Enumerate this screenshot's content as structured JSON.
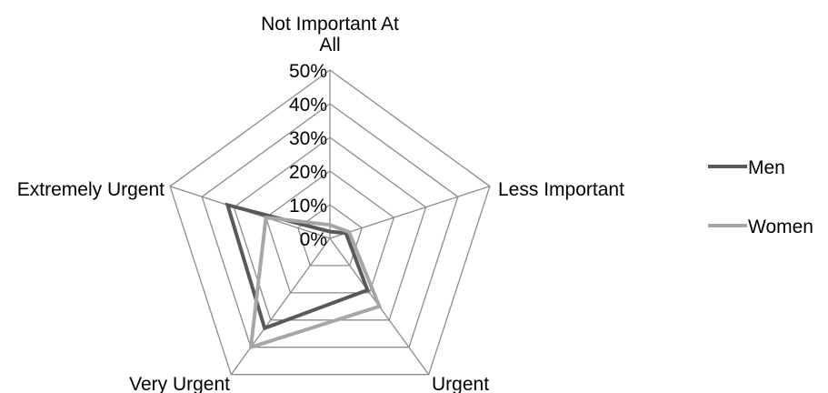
{
  "chart_data": {
    "type": "radar",
    "categories": [
      "Not Important At All",
      "Less Important",
      "Urgent",
      "Very Urgent",
      "Extremely Urgent"
    ],
    "category_label_lines": [
      [
        "Not Important At",
        "All"
      ],
      [
        "Less Important"
      ],
      [
        "Urgent"
      ],
      [
        "Very Urgent"
      ],
      [
        "Extremely Urgent"
      ]
    ],
    "ylim": [
      0,
      0.5
    ],
    "ticks": [
      0,
      0.1,
      0.2,
      0.3,
      0.4,
      0.5
    ],
    "tick_labels": [
      "0%",
      "10%",
      "20%",
      "30%",
      "40%",
      "50%"
    ],
    "grid": true,
    "legend_position": "right",
    "series": [
      {
        "name": "Men",
        "values": [
          0.02,
          0.05,
          0.19,
          0.33,
          0.32
        ],
        "color": "#595959"
      },
      {
        "name": "Women",
        "values": [
          0.04,
          0.06,
          0.25,
          0.4,
          0.2
        ],
        "color": "#a6a6a6"
      }
    ],
    "grid_color": "#8c8c8c"
  }
}
